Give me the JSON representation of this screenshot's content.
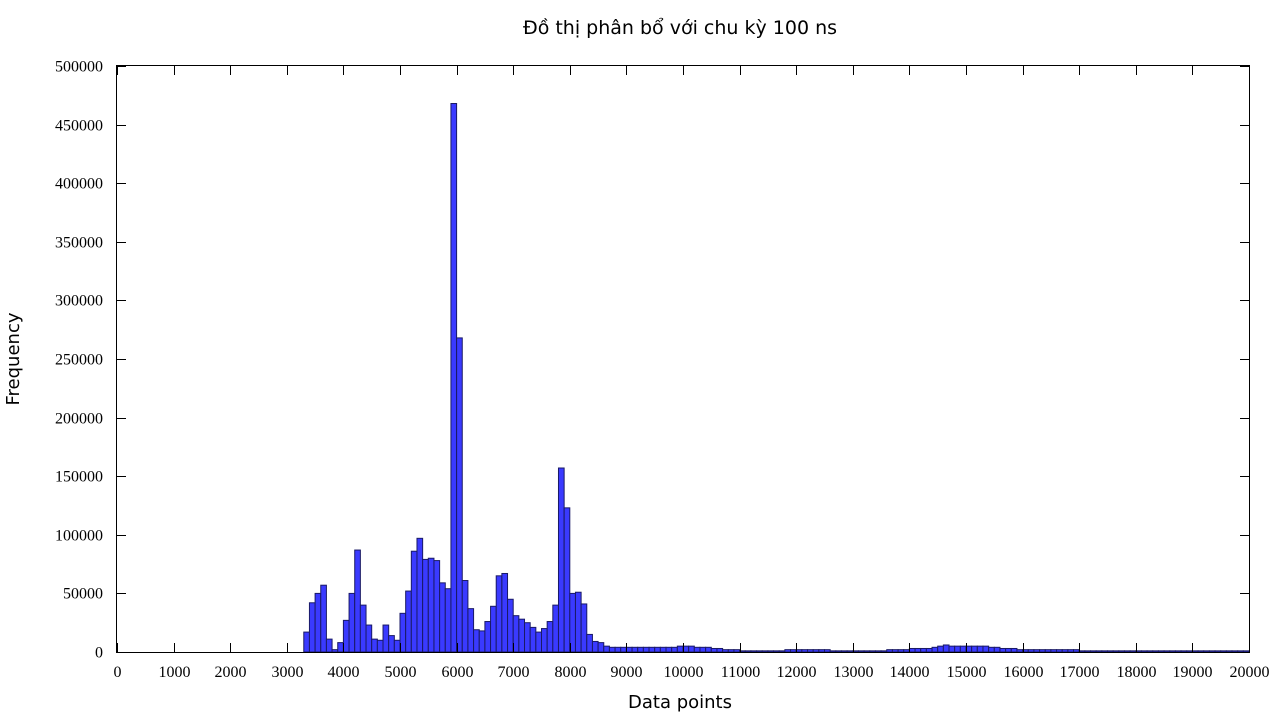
{
  "chart_data": {
    "type": "bar",
    "title": "Đồ thị phân bổ với chu kỳ 100 ns",
    "xlabel": "Data points",
    "ylabel": "Frequency",
    "xlim": [
      0,
      20000
    ],
    "ylim": [
      0,
      500000
    ],
    "x_ticks": [
      "0",
      "1000",
      "2000",
      "3000",
      "4000",
      "5000",
      "6000",
      "7000",
      "8000",
      "9000",
      "10000",
      "11000",
      "12000",
      "13000",
      "14000",
      "15000",
      "16000",
      "17000",
      "18000",
      "19000",
      "20000"
    ],
    "y_ticks": [
      "0",
      "50000",
      "100000",
      "150000",
      "200000",
      "250000",
      "300000",
      "350000",
      "400000",
      "450000",
      "500000"
    ],
    "bin_width": 100,
    "bar_color": "#3a3aff",
    "grid": false,
    "legend": "none",
    "bins": [
      [
        3300,
        17000
      ],
      [
        3400,
        42000
      ],
      [
        3500,
        50000
      ],
      [
        3600,
        57000
      ],
      [
        3700,
        11000
      ],
      [
        3800,
        2000
      ],
      [
        3900,
        8000
      ],
      [
        4000,
        27000
      ],
      [
        4100,
        50000
      ],
      [
        4200,
        87000
      ],
      [
        4300,
        40000
      ],
      [
        4400,
        23000
      ],
      [
        4500,
        11000
      ],
      [
        4600,
        10000
      ],
      [
        4700,
        23000
      ],
      [
        4800,
        14000
      ],
      [
        4900,
        10000
      ],
      [
        5000,
        33000
      ],
      [
        5100,
        52000
      ],
      [
        5200,
        86000
      ],
      [
        5300,
        97000
      ],
      [
        5400,
        79000
      ],
      [
        5500,
        80000
      ],
      [
        5600,
        78000
      ],
      [
        5700,
        59000
      ],
      [
        5800,
        54000
      ],
      [
        5900,
        468000
      ],
      [
        6000,
        268000
      ],
      [
        6100,
        61000
      ],
      [
        6200,
        37000
      ],
      [
        6300,
        19000
      ],
      [
        6400,
        18000
      ],
      [
        6500,
        26000
      ],
      [
        6600,
        39000
      ],
      [
        6700,
        65000
      ],
      [
        6800,
        67000
      ],
      [
        6900,
        45000
      ],
      [
        7000,
        31000
      ],
      [
        7100,
        28000
      ],
      [
        7200,
        25000
      ],
      [
        7300,
        21000
      ],
      [
        7400,
        17000
      ],
      [
        7500,
        20000
      ],
      [
        7600,
        26000
      ],
      [
        7700,
        40000
      ],
      [
        7800,
        157000
      ],
      [
        7900,
        123000
      ],
      [
        8000,
        50000
      ],
      [
        8100,
        51000
      ],
      [
        8200,
        41000
      ],
      [
        8300,
        15000
      ],
      [
        8400,
        9000
      ],
      [
        8500,
        8000
      ],
      [
        8600,
        5000
      ],
      [
        8700,
        4000
      ],
      [
        8800,
        4000
      ],
      [
        8900,
        4000
      ],
      [
        9000,
        4000
      ],
      [
        9100,
        4000
      ],
      [
        9200,
        4000
      ],
      [
        9300,
        4000
      ],
      [
        9400,
        4000
      ],
      [
        9500,
        4000
      ],
      [
        9600,
        4000
      ],
      [
        9700,
        4000
      ],
      [
        9800,
        4000
      ],
      [
        9900,
        5000
      ],
      [
        10000,
        5000
      ],
      [
        10100,
        5000
      ],
      [
        10200,
        4000
      ],
      [
        10300,
        4000
      ],
      [
        10400,
        4000
      ],
      [
        10500,
        3000
      ],
      [
        10600,
        3000
      ],
      [
        10700,
        2000
      ],
      [
        10800,
        2000
      ],
      [
        10900,
        2000
      ],
      [
        11000,
        1000
      ],
      [
        11100,
        1000
      ],
      [
        11200,
        1000
      ],
      [
        11300,
        1000
      ],
      [
        11400,
        1000
      ],
      [
        11500,
        1000
      ],
      [
        11600,
        1000
      ],
      [
        11700,
        1000
      ],
      [
        11800,
        2000
      ],
      [
        11900,
        2000
      ],
      [
        12000,
        2000
      ],
      [
        12100,
        2000
      ],
      [
        12200,
        2000
      ],
      [
        12300,
        2000
      ],
      [
        12400,
        2000
      ],
      [
        12500,
        2000
      ],
      [
        12600,
        1000
      ],
      [
        12700,
        1000
      ],
      [
        12800,
        1000
      ],
      [
        12900,
        1000
      ],
      [
        13000,
        1000
      ],
      [
        13100,
        1000
      ],
      [
        13200,
        1000
      ],
      [
        13300,
        1000
      ],
      [
        13400,
        1000
      ],
      [
        13500,
        1000
      ],
      [
        13600,
        2000
      ],
      [
        13700,
        2000
      ],
      [
        13800,
        2000
      ],
      [
        13900,
        2000
      ],
      [
        14000,
        3000
      ],
      [
        14100,
        3000
      ],
      [
        14200,
        3000
      ],
      [
        14300,
        3000
      ],
      [
        14400,
        4000
      ],
      [
        14500,
        5000
      ],
      [
        14600,
        6000
      ],
      [
        14700,
        5000
      ],
      [
        14800,
        5000
      ],
      [
        14900,
        5000
      ],
      [
        15000,
        5000
      ],
      [
        15100,
        5000
      ],
      [
        15200,
        5000
      ],
      [
        15300,
        5000
      ],
      [
        15400,
        4000
      ],
      [
        15500,
        4000
      ],
      [
        15600,
        3000
      ],
      [
        15700,
        3000
      ],
      [
        15800,
        3000
      ],
      [
        15900,
        2000
      ],
      [
        16000,
        2000
      ],
      [
        16100,
        2000
      ],
      [
        16200,
        2000
      ],
      [
        16300,
        2000
      ],
      [
        16400,
        2000
      ],
      [
        16500,
        2000
      ],
      [
        16600,
        2000
      ],
      [
        16700,
        2000
      ],
      [
        16800,
        2000
      ],
      [
        16900,
        2000
      ],
      [
        17000,
        1000
      ],
      [
        17100,
        1000
      ],
      [
        17200,
        1000
      ],
      [
        17300,
        1000
      ],
      [
        17400,
        1000
      ],
      [
        17500,
        1000
      ],
      [
        17600,
        1000
      ],
      [
        17700,
        1000
      ],
      [
        17800,
        1000
      ],
      [
        17900,
        1000
      ],
      [
        18000,
        1000
      ],
      [
        18100,
        1000
      ],
      [
        18200,
        1000
      ],
      [
        18300,
        1000
      ],
      [
        18400,
        1000
      ],
      [
        18500,
        1000
      ],
      [
        18600,
        1000
      ],
      [
        18700,
        1000
      ],
      [
        18800,
        1000
      ],
      [
        18900,
        1000
      ],
      [
        19000,
        1000
      ],
      [
        19100,
        1000
      ],
      [
        19200,
        1000
      ],
      [
        19300,
        1000
      ],
      [
        19400,
        1000
      ],
      [
        19500,
        1000
      ],
      [
        19600,
        1000
      ],
      [
        19700,
        1000
      ],
      [
        19800,
        1000
      ],
      [
        19900,
        1000
      ]
    ]
  }
}
